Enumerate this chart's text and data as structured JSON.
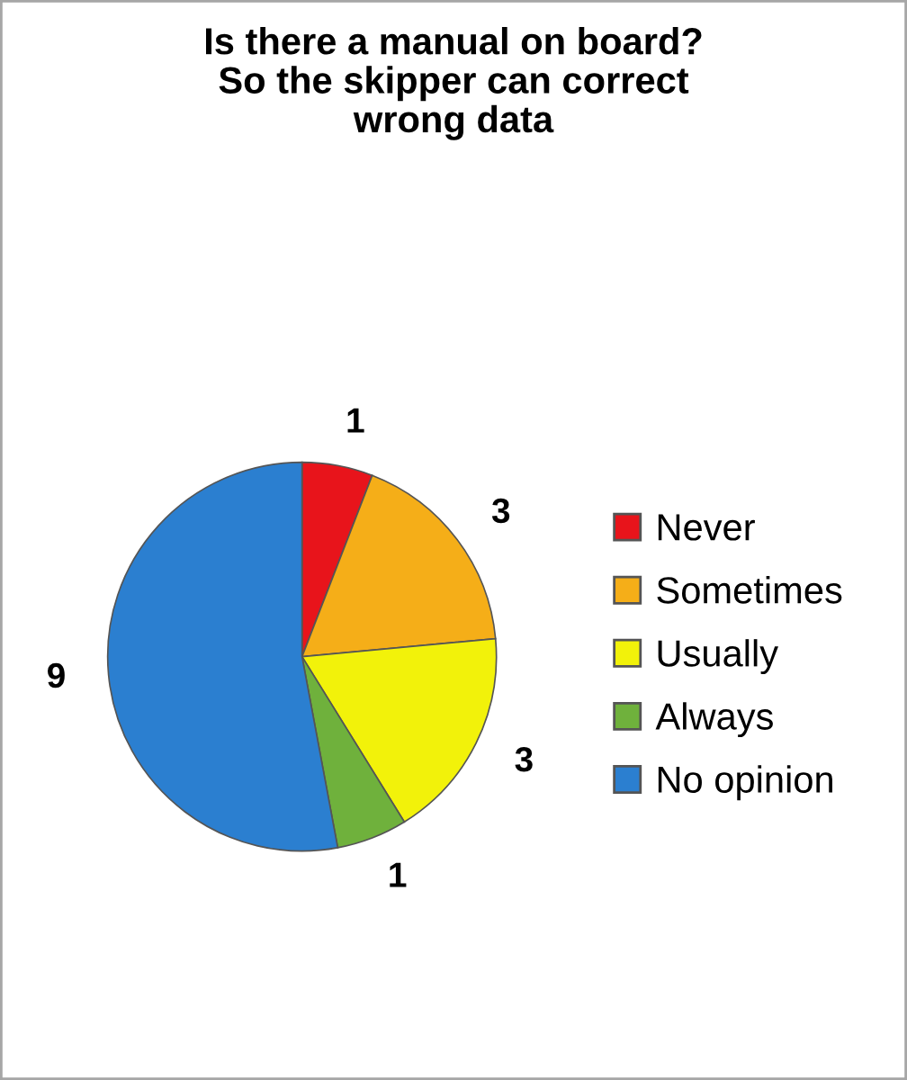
{
  "chart_data": {
    "type": "pie",
    "title": "Is there a manual on board?\nSo the skipper can correct\nwrong data",
    "categories": [
      "Never",
      "Sometimes",
      "Usually",
      "Always",
      "No opinion"
    ],
    "values": [
      1,
      3,
      3,
      1,
      9
    ],
    "colors": [
      "#e8141b",
      "#f5ae18",
      "#f2f20a",
      "#6fb13c",
      "#2b7fd0"
    ],
    "data_labels": true,
    "legend": "right"
  }
}
